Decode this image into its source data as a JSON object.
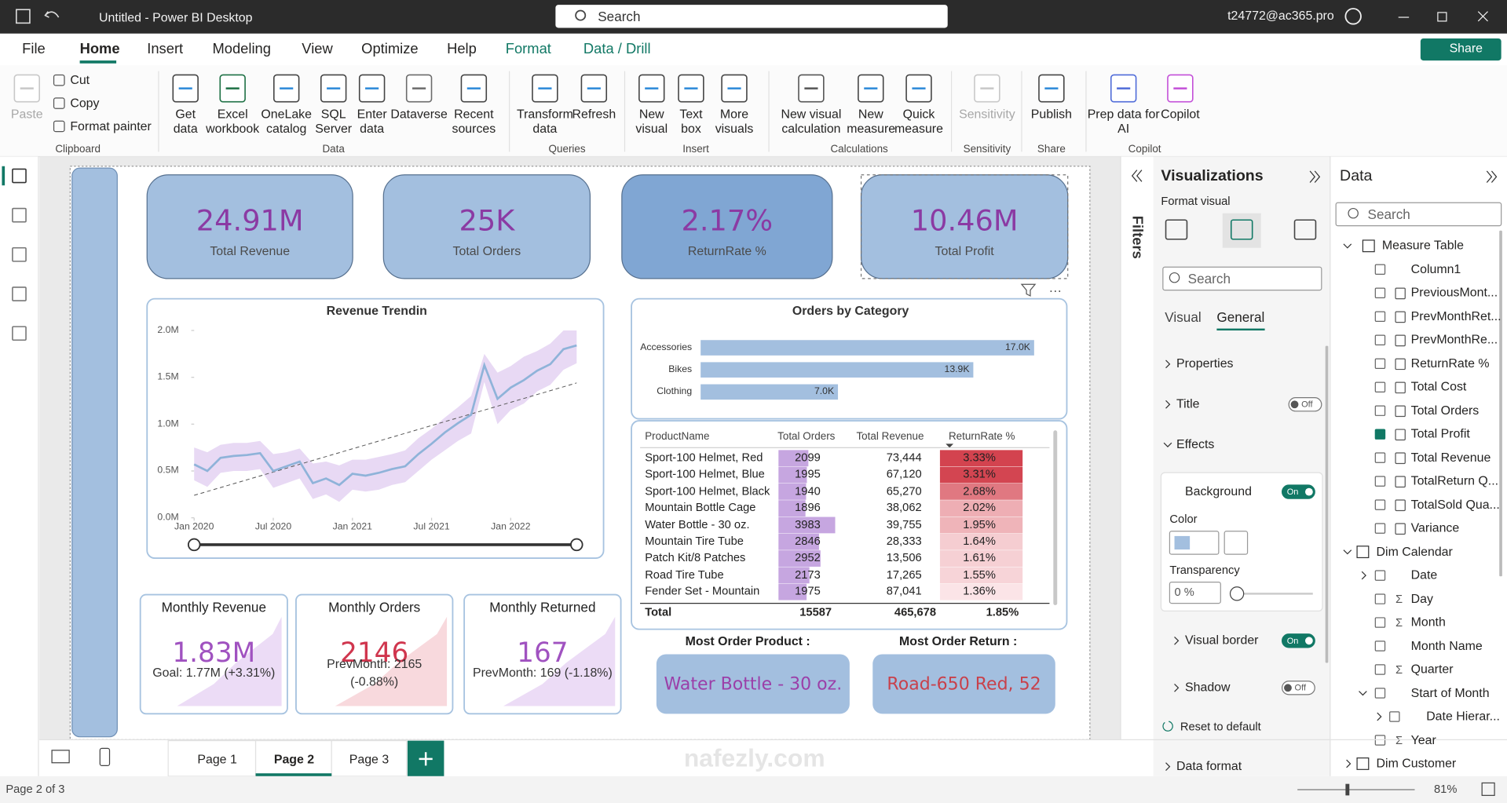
{
  "app": {
    "title": "Untitled - Power BI Desktop",
    "search": "Search",
    "user": "t24772@ac365.pro",
    "share": "Share"
  },
  "menu": [
    "File",
    "Home",
    "Insert",
    "Modeling",
    "View",
    "Optimize",
    "Help",
    "Format",
    "Data / Drill"
  ],
  "ribbon": {
    "buttons": [
      "Paste",
      "Cut",
      "Copy",
      "Format painter",
      "Get data",
      "Excel workbook",
      "OneLake catalog",
      "SQL Server",
      "Enter data",
      "Dataverse",
      "Recent sources",
      "Transform data",
      "Refresh",
      "New visual",
      "Text box",
      "More visuals",
      "New visual calculation",
      "New measure",
      "Quick measure",
      "Sensitivity",
      "Publish",
      "Prep data for AI",
      "Copilot"
    ],
    "groups": [
      "Clipboard",
      "Data",
      "Queries",
      "Insert",
      "Calculations",
      "Sensitivity",
      "Share",
      "Copilot"
    ]
  },
  "cards": [
    {
      "value": "24.91M",
      "label": "Total Revenue"
    },
    {
      "value": "25K",
      "label": "Total Orders"
    },
    {
      "value": "2.17%",
      "label": "ReturnRate %"
    },
    {
      "value": "10.46M",
      "label": "Total Profit"
    }
  ],
  "chart_data": [
    {
      "type": "line",
      "title": "Revenue Trendin",
      "x": [
        "2020-01",
        "2020-02",
        "2020-03",
        "2020-04",
        "2020-05",
        "2020-06",
        "2020-07",
        "2020-08",
        "2020-09",
        "2020-10",
        "2020-11",
        "2020-12",
        "2021-01",
        "2021-02",
        "2021-03",
        "2021-04",
        "2021-05",
        "2021-06",
        "2021-07",
        "2021-08",
        "2021-09",
        "2021-10",
        "2021-11",
        "2021-12",
        "2022-01",
        "2022-02",
        "2022-03",
        "2022-04",
        "2022-05",
        "2022-06"
      ],
      "values": [
        0.57,
        0.5,
        0.64,
        0.66,
        0.67,
        0.69,
        0.5,
        0.55,
        0.6,
        0.37,
        0.42,
        0.35,
        0.47,
        0.45,
        0.48,
        0.52,
        0.55,
        0.68,
        0.79,
        0.91,
        1.01,
        1.1,
        1.63,
        1.27,
        1.39,
        1.47,
        1.57,
        1.64,
        1.8,
        1.84
      ],
      "color": "#8fb3d9",
      "band": {
        "color": "#e8d9f4",
        "high": [
          0.75,
          0.7,
          0.78,
          0.8,
          0.8,
          0.82,
          0.68,
          0.7,
          0.74,
          0.58,
          0.6,
          0.56,
          0.62,
          0.62,
          0.65,
          0.68,
          0.72,
          0.85,
          0.95,
          1.07,
          1.18,
          1.3,
          1.75,
          1.55,
          1.62,
          1.72,
          1.78,
          1.86,
          2.0,
          2.0
        ],
        "low": [
          0.4,
          0.33,
          0.48,
          0.5,
          0.5,
          0.52,
          0.32,
          0.37,
          0.42,
          0.2,
          0.25,
          0.17,
          0.3,
          0.28,
          0.3,
          0.35,
          0.38,
          0.5,
          0.62,
          0.72,
          0.82,
          0.9,
          1.45,
          1.0,
          1.15,
          1.22,
          1.35,
          1.42,
          1.58,
          1.65
        ]
      },
      "trend": [
        0.24,
        1.44
      ],
      "ylim": [
        0,
        2
      ],
      "yticks": [
        {
          "value": 0,
          "label": "0.0M"
        },
        {
          "value": 0.5,
          "label": "0.5M"
        },
        {
          "value": 1,
          "label": "1.0M"
        },
        {
          "value": 1.5,
          "label": "1.5M"
        },
        {
          "value": 2,
          "label": "2.0M"
        }
      ],
      "xticks": [
        {
          "value": "2020-01",
          "label": "Jan 2020"
        },
        {
          "value": "2020-07",
          "label": "Jul 2020"
        },
        {
          "value": "2021-01",
          "label": "Jan 2021"
        },
        {
          "value": "2021-07",
          "label": "Jul 2021"
        },
        {
          "value": "2022-01",
          "label": "Jan 2022"
        }
      ]
    },
    {
      "type": "bar",
      "orientation": "horizontal",
      "title": "Orders by Category",
      "categories": [
        "Accessories",
        "Bikes",
        "Clothing"
      ],
      "values": [
        17000,
        13900,
        7000
      ],
      "value_labels": [
        "17.0K",
        "13.9K",
        "7.0K"
      ],
      "color": "#a3bfdf"
    }
  ],
  "table": {
    "columns": [
      "ProductName",
      "Total Orders",
      "Total Revenue",
      "ReturnRate %"
    ],
    "rows": [
      [
        "Sport-100 Helmet, Red",
        2099,
        "73,444",
        "3.33%"
      ],
      [
        "Sport-100 Helmet, Blue",
        1995,
        "67,120",
        "3.31%"
      ],
      [
        "Sport-100 Helmet, Black",
        1940,
        "65,270",
        "2.68%"
      ],
      [
        "Mountain Bottle Cage",
        1896,
        "38,062",
        "2.02%"
      ],
      [
        "Water Bottle - 30 oz.",
        3983,
        "39,755",
        "1.95%"
      ],
      [
        "Mountain Tire Tube",
        2846,
        "28,333",
        "1.64%"
      ],
      [
        "Patch Kit/8 Patches",
        2952,
        "13,506",
        "1.61%"
      ],
      [
        "Road Tire Tube",
        2173,
        "17,265",
        "1.55%"
      ],
      [
        "Fender Set - Mountain",
        1975,
        "87,041",
        "1.36%"
      ]
    ],
    "total": [
      "Total",
      15587,
      "465,678",
      "1.85%"
    ]
  },
  "kpis": [
    {
      "title": "Monthly Revenue",
      "value": "1.83M",
      "note": [
        "Goal: 1.77M (+3.31%)"
      ]
    },
    {
      "title": "Monthly Orders",
      "value": "2146",
      "note": [
        "PrevMonth: 2165",
        "(-0.88%)"
      ]
    },
    {
      "title": "Monthly Returned",
      "value": "167",
      "note": [
        "PrevMonth: 169 (-1.18%)"
      ]
    }
  ],
  "highlights": [
    {
      "title": "Most Order Product :",
      "value": "Water Bottle - 30 oz."
    },
    {
      "title": "Most Order Return :",
      "value": "Road-650 Red, 52"
    }
  ],
  "filters": "Filters",
  "visualizations": {
    "title": "Visualizations",
    "subtitle": "Format visual",
    "search": "Search",
    "tabs": [
      "Visual",
      "General"
    ],
    "sections": [
      "Properties",
      "Title",
      "Effects",
      "Background",
      "Visual border",
      "Shadow",
      "Data format"
    ],
    "toggles": [
      "Off",
      "On",
      "On",
      "Off"
    ],
    "color": "Color",
    "transparency": "Transparency",
    "transparency_value": "0 %",
    "reset": "Reset to default"
  },
  "data_pane": {
    "title": "Data",
    "search": "Search",
    "items": [
      "Measure Table",
      "Column1",
      "PreviousMont...",
      "PrevMonthRet...",
      "PrevMonthRe...",
      "ReturnRate %",
      "Total Cost",
      "Total Orders",
      "Total Profit",
      "Total Revenue",
      "TotalReturn Q...",
      "TotalSold Qua...",
      "Variance",
      "Dim Calendar",
      "Date",
      "Day",
      "Month",
      "Month Name",
      "Quarter",
      "Start of Month",
      "Date Hierar...",
      "Year",
      "Dim Customer"
    ]
  },
  "pages": [
    "Page 1",
    "Page 2",
    "Page 3"
  ],
  "status": "Page 2 of 3",
  "zoom": "81%",
  "watermark": "nafezly.com"
}
